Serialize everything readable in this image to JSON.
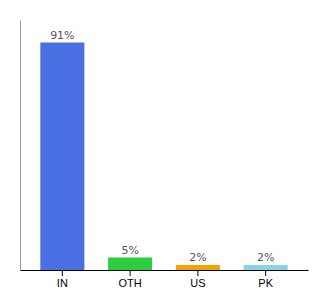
{
  "chart_data": {
    "type": "bar",
    "categories": [
      "IN",
      "OTH",
      "US",
      "PK"
    ],
    "values": [
      91,
      5,
      2,
      2
    ],
    "value_labels": [
      "91%",
      "5%",
      "2%",
      "2%"
    ],
    "colors": [
      "#4a6fe3",
      "#2ecc40",
      "#f0a500",
      "#85d4e3"
    ],
    "ylim": [
      0,
      100
    ],
    "data_labels": true,
    "tick_labels": "x"
  }
}
